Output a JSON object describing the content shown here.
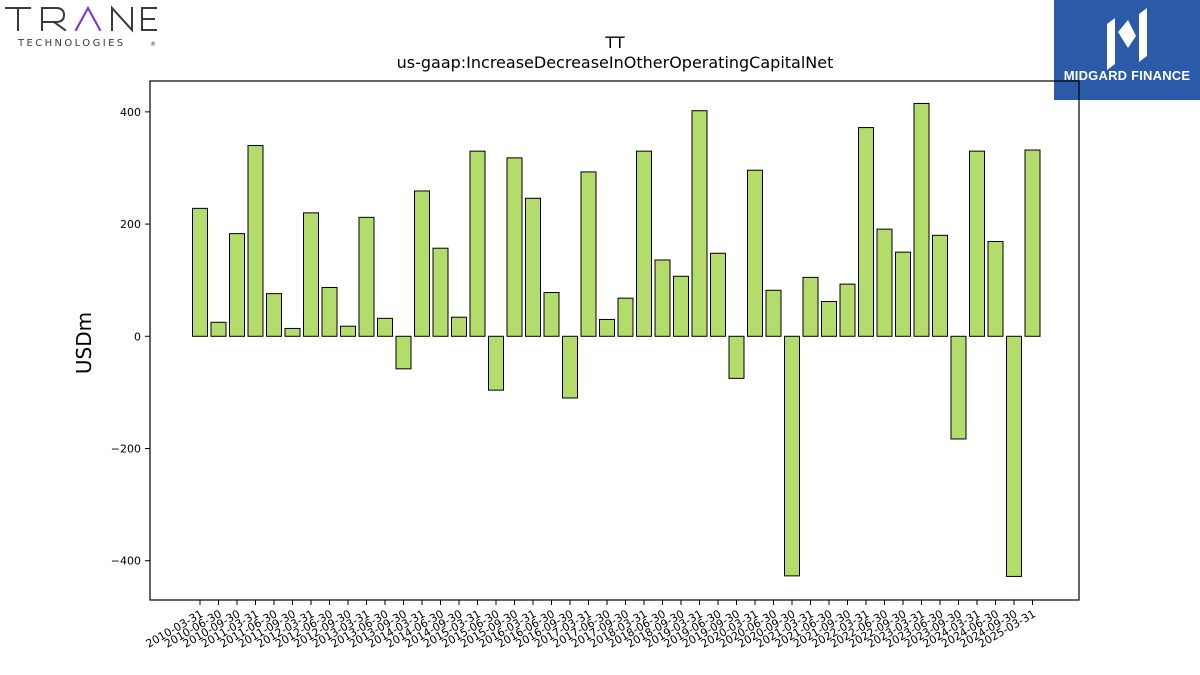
{
  "brand_left": {
    "wordmark": "TRANE",
    "sub": "TECHNOLOGIES",
    "trademark": "®"
  },
  "brand_right": {
    "name": "MIDGARD FINANCE"
  },
  "colors": {
    "bar": "#b3dc6a",
    "edge": "#000000",
    "brand_purple": "#7b2fd0",
    "brand_right_bg": "#2a5aa8"
  },
  "chart_data": {
    "type": "bar",
    "title": "TT",
    "subtitle": "us-gaap:IncreaseDecreaseInOtherOperatingCapitalNet",
    "ylabel": "USDm",
    "xlabel": "",
    "ylim": [
      -470,
      455
    ],
    "yticks": [
      -400,
      -200,
      0,
      200,
      400
    ],
    "yticklabels": [
      "−400",
      "−200",
      "0",
      "200",
      "400"
    ],
    "grid": false,
    "categories": [
      "2010-03-31",
      "2010-06-30",
      "2010-09-30",
      "2011-03-31",
      "2011-06-30",
      "2011-09-30",
      "2012-03-31",
      "2012-06-30",
      "2012-09-30",
      "2013-03-31",
      "2013-06-30",
      "2013-09-30",
      "2014-03-31",
      "2014-06-30",
      "2014-09-30",
      "2015-03-31",
      "2015-06-30",
      "2015-09-30",
      "2016-03-31",
      "2016-06-30",
      "2016-09-30",
      "2017-03-31",
      "2017-06-30",
      "2017-09-30",
      "2018-03-31",
      "2018-06-30",
      "2018-09-30",
      "2019-03-31",
      "2019-06-30",
      "2019-09-30",
      "2020-03-31",
      "2020-06-30",
      "2020-09-30",
      "2021-03-31",
      "2021-06-30",
      "2021-09-30",
      "2022-03-31",
      "2022-06-30",
      "2022-09-30",
      "2023-03-31",
      "2023-06-30",
      "2023-09-30",
      "2024-03-31",
      "2024-06-30",
      "2024-09-30",
      "2025-03-31"
    ],
    "values": [
      228,
      25,
      183,
      340,
      76,
      14,
      220,
      87,
      18,
      212,
      32,
      -58,
      259,
      157,
      34,
      330,
      -96,
      318,
      246,
      78,
      -110,
      293,
      30,
      68,
      330,
      136,
      107,
      402,
      148,
      -75,
      296,
      82,
      -427,
      105,
      62,
      93,
      372,
      191,
      150,
      415,
      180,
      -183,
      330,
      169,
      -428,
      332
    ]
  }
}
